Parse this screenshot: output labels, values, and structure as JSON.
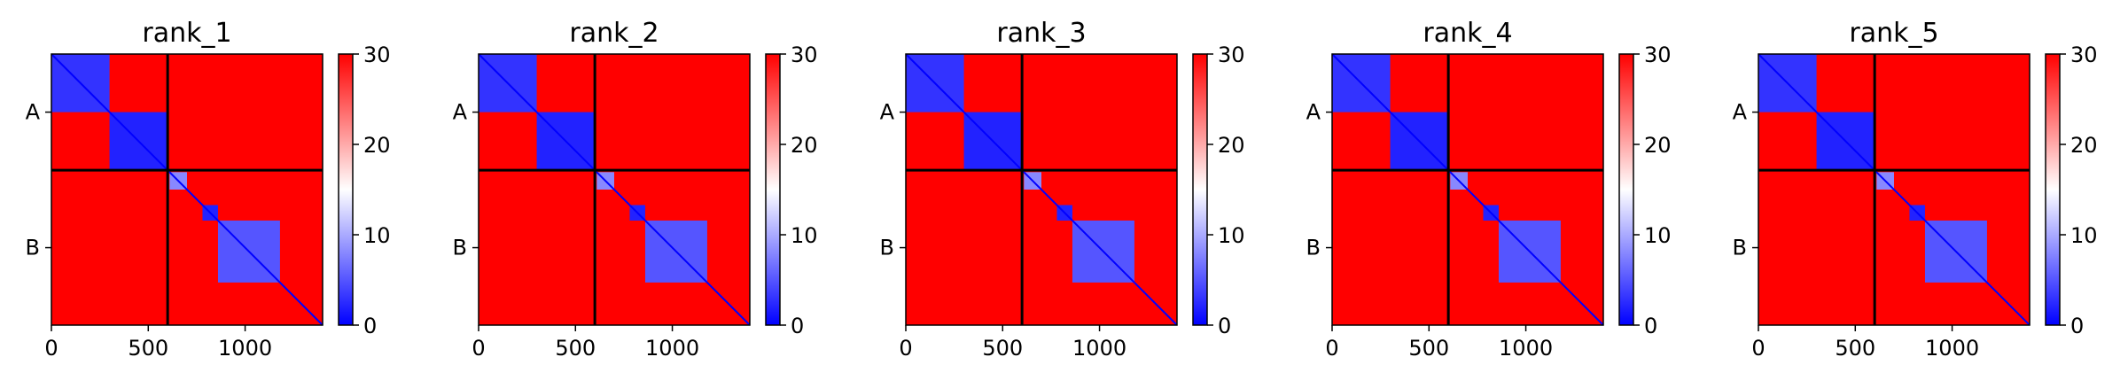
{
  "chart_data": {
    "type": "heatmap",
    "colormap": {
      "low": "#0000ff",
      "mid": "#ffffff",
      "high": "#ff0000"
    },
    "colorbar": {
      "ticks": [
        "0",
        "10",
        "20",
        "30"
      ],
      "range": [
        0,
        30
      ]
    },
    "x_ticks": [
      "0",
      "500",
      "1000"
    ],
    "x_tick_values": [
      0,
      500,
      1000
    ],
    "x_range": [
      0,
      1400
    ],
    "y_ticks": [
      "A",
      "B"
    ],
    "chain_boundary": 600,
    "panels": [
      {
        "title": "rank_1",
        "blocks": [
          {
            "start": 0,
            "end": 300,
            "value": 3
          },
          {
            "start": 300,
            "end": 600,
            "value": 2
          },
          {
            "start": 610,
            "end": 700,
            "value": 8
          },
          {
            "start": 780,
            "end": 860,
            "value": 2
          },
          {
            "start": 860,
            "end": 1180,
            "value": 5
          }
        ]
      },
      {
        "title": "rank_2",
        "blocks": [
          {
            "start": 0,
            "end": 300,
            "value": 3
          },
          {
            "start": 300,
            "end": 600,
            "value": 2
          },
          {
            "start": 610,
            "end": 700,
            "value": 8
          },
          {
            "start": 780,
            "end": 860,
            "value": 2
          },
          {
            "start": 860,
            "end": 1180,
            "value": 5
          }
        ]
      },
      {
        "title": "rank_3",
        "blocks": [
          {
            "start": 0,
            "end": 300,
            "value": 3
          },
          {
            "start": 300,
            "end": 600,
            "value": 2
          },
          {
            "start": 610,
            "end": 700,
            "value": 8
          },
          {
            "start": 780,
            "end": 860,
            "value": 2
          },
          {
            "start": 860,
            "end": 1180,
            "value": 5
          }
        ]
      },
      {
        "title": "rank_4",
        "blocks": [
          {
            "start": 0,
            "end": 300,
            "value": 3
          },
          {
            "start": 300,
            "end": 600,
            "value": 2
          },
          {
            "start": 610,
            "end": 700,
            "value": 8
          },
          {
            "start": 780,
            "end": 860,
            "value": 2
          },
          {
            "start": 860,
            "end": 1180,
            "value": 5
          }
        ]
      },
      {
        "title": "rank_5",
        "blocks": [
          {
            "start": 0,
            "end": 300,
            "value": 3
          },
          {
            "start": 300,
            "end": 600,
            "value": 2
          },
          {
            "start": 610,
            "end": 700,
            "value": 8
          },
          {
            "start": 780,
            "end": 860,
            "value": 2
          },
          {
            "start": 860,
            "end": 1180,
            "value": 5
          }
        ]
      }
    ]
  }
}
